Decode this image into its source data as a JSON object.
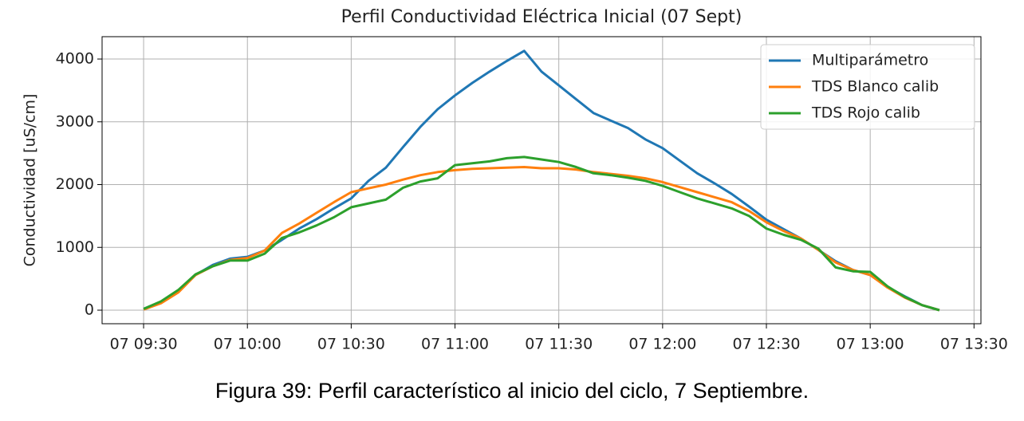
{
  "chart_data": {
    "type": "line",
    "title": "Perfil Conductividad Eléctrica Inicial (07 Sept)",
    "ylabel": "Conductividad [uS/cm]",
    "caption": "Figura 39: Perfil característico al inicio del ciclo, 7 Septiembre.",
    "x": [
      "07 09:30",
      "07 09:35",
      "07 09:40",
      "07 09:45",
      "07 09:50",
      "07 09:55",
      "07 10:00",
      "07 10:05",
      "07 10:10",
      "07 10:15",
      "07 10:20",
      "07 10:25",
      "07 10:30",
      "07 10:35",
      "07 10:40",
      "07 10:45",
      "07 10:50",
      "07 10:55",
      "07 11:00",
      "07 11:05",
      "07 11:10",
      "07 11:15",
      "07 11:20",
      "07 11:25",
      "07 11:30",
      "07 11:35",
      "07 11:40",
      "07 11:45",
      "07 11:50",
      "07 11:55",
      "07 12:00",
      "07 12:05",
      "07 12:10",
      "07 12:15",
      "07 12:20",
      "07 12:25",
      "07 12:30",
      "07 12:35",
      "07 12:40",
      "07 12:45",
      "07 12:50",
      "07 12:55",
      "07 13:00",
      "07 13:05",
      "07 13:10",
      "07 13:15",
      "07 13:20"
    ],
    "series": [
      {
        "name": "Multiparámetro",
        "color": "#1f77b4",
        "values": [
          20,
          130,
          300,
          560,
          720,
          820,
          850,
          950,
          1120,
          1300,
          1450,
          1620,
          1780,
          2060,
          2270,
          2600,
          2920,
          3200,
          3420,
          3620,
          3800,
          3970,
          4130,
          3800,
          3580,
          3360,
          3140,
          3020,
          2900,
          2720,
          2580,
          2380,
          2180,
          2020,
          1850,
          1650,
          1440,
          1290,
          1140,
          960,
          780,
          640,
          560,
          370,
          220,
          80,
          0
        ]
      },
      {
        "name": "TDS Blanco calib",
        "color": "#ff7f0e",
        "values": [
          10,
          110,
          280,
          560,
          700,
          800,
          830,
          950,
          1230,
          1380,
          1550,
          1720,
          1880,
          1940,
          2000,
          2080,
          2150,
          2200,
          2230,
          2250,
          2260,
          2270,
          2280,
          2260,
          2260,
          2240,
          2200,
          2170,
          2140,
          2100,
          2040,
          1960,
          1880,
          1800,
          1720,
          1580,
          1400,
          1260,
          1140,
          960,
          760,
          640,
          560,
          360,
          200,
          80,
          0
        ]
      },
      {
        "name": "TDS Rojo calib",
        "color": "#2ca02c",
        "values": [
          20,
          140,
          320,
          570,
          700,
          790,
          790,
          900,
          1150,
          1240,
          1350,
          1480,
          1640,
          1700,
          1760,
          1950,
          2050,
          2100,
          2310,
          2340,
          2370,
          2420,
          2440,
          2400,
          2360,
          2280,
          2180,
          2150,
          2110,
          2060,
          1980,
          1880,
          1780,
          1700,
          1620,
          1500,
          1300,
          1200,
          1120,
          980,
          680,
          620,
          610,
          380,
          210,
          80,
          0
        ]
      }
    ],
    "xlim": [
      "07 09:18",
      "07 13:32"
    ],
    "xticks": [
      "07 09:30",
      "07 10:00",
      "07 10:30",
      "07 11:00",
      "07 11:30",
      "07 12:00",
      "07 12:30",
      "07 13:00",
      "07 13:30"
    ],
    "ylim": [
      -216,
      4356
    ],
    "yticks": [
      0,
      1000,
      2000,
      3000,
      4000
    ],
    "grid": true,
    "legend": "upper right"
  }
}
